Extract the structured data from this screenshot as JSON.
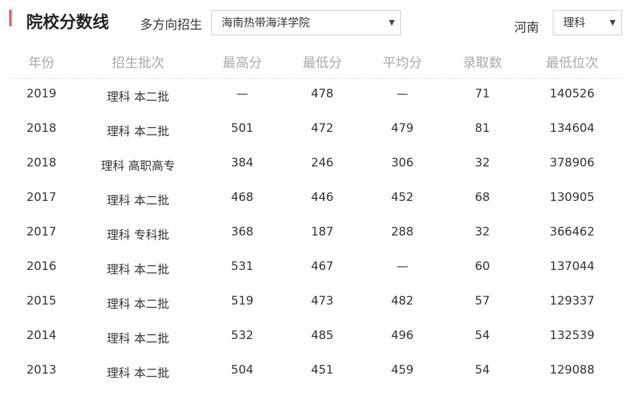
{
  "title": "院校分数线",
  "filter_label": "多方向招生",
  "school_select": "海南热带海洋学院",
  "province": "河南",
  "subject_select": "理科",
  "columns": [
    "年份",
    "招生批次",
    "最高分",
    "最低分",
    "平均分",
    "录取数",
    "最低位次"
  ],
  "rows": [
    [
      "2019",
      "理科 本二批",
      "—",
      "478",
      "—",
      "71",
      "140526"
    ],
    [
      "2018",
      "理科 本二批",
      "501",
      "472",
      "479",
      "81",
      "134604"
    ],
    [
      "2018",
      "理科 高职高专",
      "384",
      "246",
      "306",
      "32",
      "378906"
    ],
    [
      "2017",
      "理科 本二批",
      "468",
      "446",
      "452",
      "68",
      "130905"
    ],
    [
      "2017",
      "理科 专科批",
      "368",
      "187",
      "288",
      "32",
      "366462"
    ],
    [
      "2016",
      "理科 本二批",
      "531",
      "467",
      "—",
      "60",
      "137044"
    ],
    [
      "2015",
      "理科 本二批",
      "519",
      "473",
      "482",
      "57",
      "129337"
    ],
    [
      "2014",
      "理科 本二批",
      "532",
      "485",
      "496",
      "54",
      "132539"
    ],
    [
      "2013",
      "理科 本二批",
      "504",
      "451",
      "459",
      "54",
      "129088"
    ]
  ],
  "colors": {
    "accent": "#f0646c"
  }
}
